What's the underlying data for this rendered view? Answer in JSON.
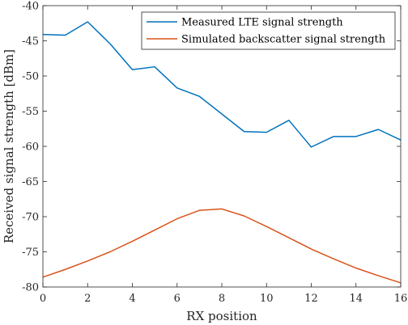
{
  "chart_data": {
    "type": "line",
    "xlabel": "RX position",
    "ylabel": "Received signal strength [dBm]",
    "xlim": [
      0,
      16
    ],
    "ylim": [
      -80,
      -40
    ],
    "xticks": [
      0,
      2,
      4,
      6,
      8,
      10,
      12,
      14,
      16
    ],
    "yticks": [
      -80,
      -75,
      -70,
      -65,
      -60,
      -55,
      -50,
      -45,
      -40
    ],
    "grid": false,
    "legend_position": "top-right",
    "x": [
      0,
      1,
      2,
      3,
      4,
      5,
      6,
      7,
      8,
      9,
      10,
      11,
      12,
      13,
      14,
      15,
      16
    ],
    "series": [
      {
        "name": "Measured LTE signal strength",
        "color": "#0072BD",
        "values": [
          -44.1,
          -44.2,
          -42.3,
          -45.4,
          -49.1,
          -48.7,
          -51.7,
          -52.9,
          -55.4,
          -57.9,
          -58.0,
          -56.3,
          -60.1,
          -58.6,
          -58.6,
          -57.6,
          -59.1
        ]
      },
      {
        "name": "Simulated backscatter signal strength",
        "color": "#D95319",
        "values": [
          -78.6,
          -77.5,
          -76.3,
          -75.0,
          -73.5,
          -71.9,
          -70.3,
          -69.1,
          -68.9,
          -69.9,
          -71.4,
          -73.0,
          -74.6,
          -76.0,
          -77.3,
          -78.4,
          -79.4
        ]
      }
    ]
  }
}
